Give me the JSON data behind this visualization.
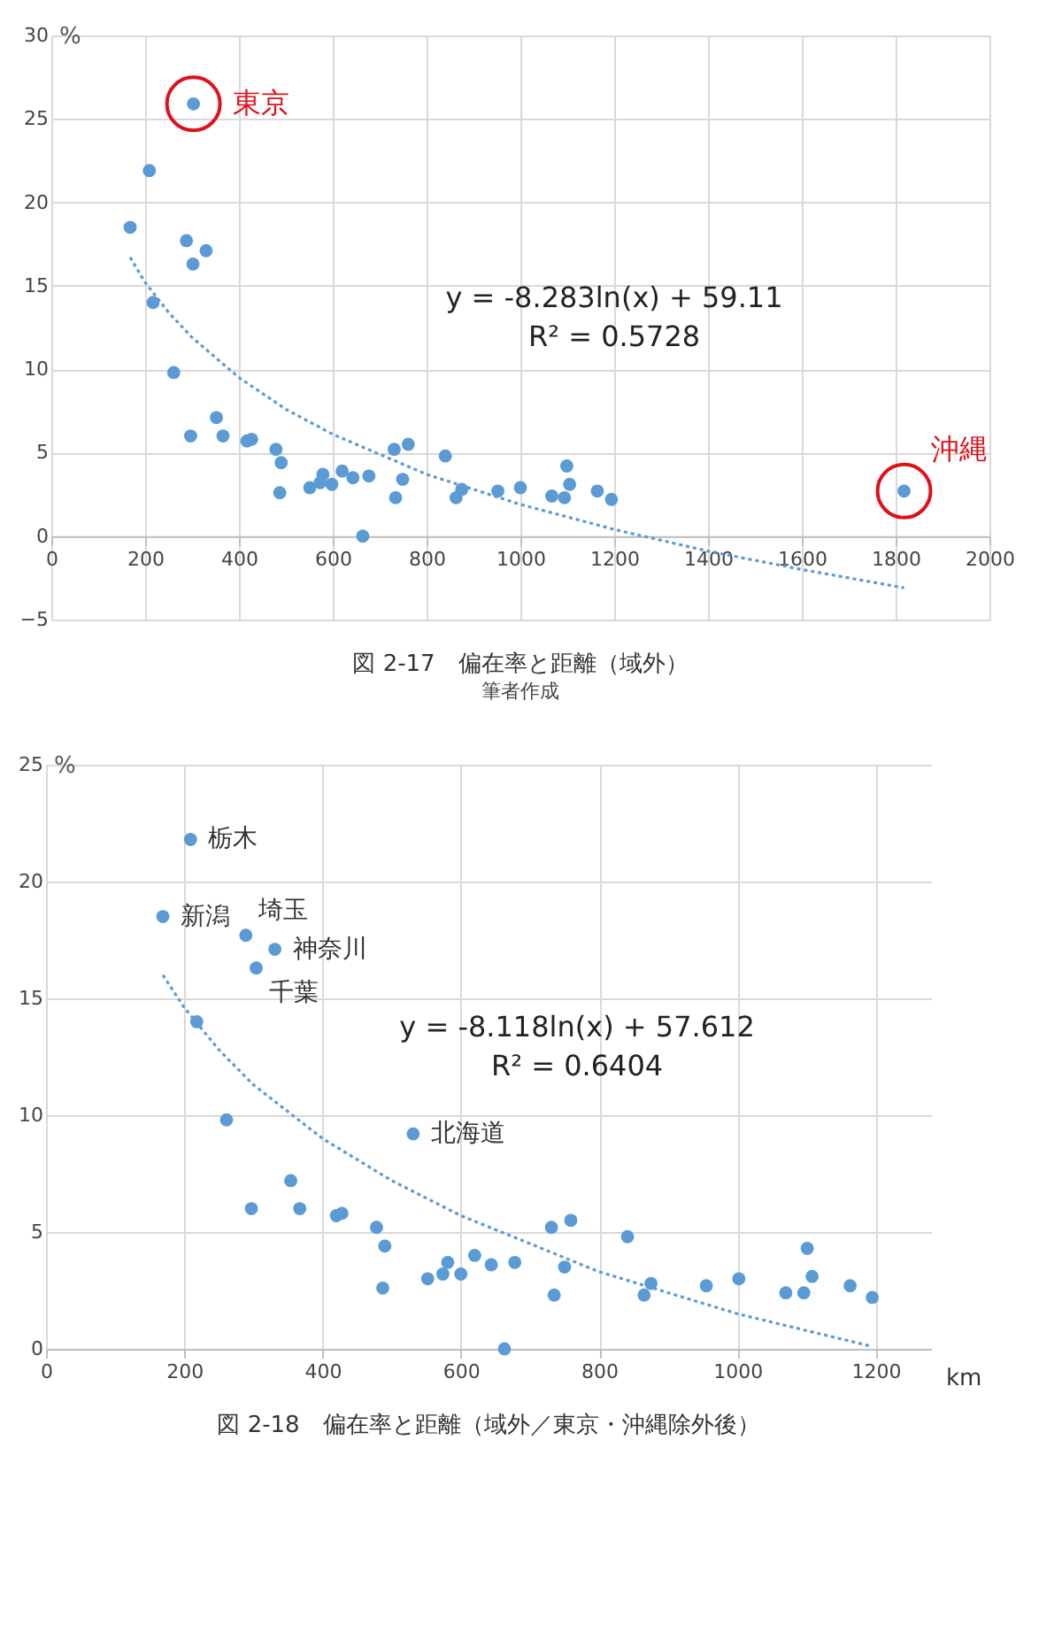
{
  "chart_data": [
    {
      "type": "scatter",
      "title": "図 2-17　偏在率と距離（域外）",
      "subtitle": "筆者作成",
      "ylabel": "%",
      "xlim": [
        0,
        2000
      ],
      "xticks": [
        0,
        200,
        400,
        600,
        800,
        1000,
        1200,
        1400,
        1600,
        1800,
        2000
      ],
      "ylim": [
        -5,
        30
      ],
      "yticks": [
        -5,
        0,
        5,
        10,
        15,
        20,
        25,
        30
      ],
      "grid": true,
      "series": [
        {
          "type": "scatter",
          "marker": "circle",
          "color": "#5b9bd5",
          "x": [
            168,
            209,
            303,
            288,
            330,
            302,
            217,
            261,
            352,
            297,
            366,
            417,
            427,
            479,
            490,
            487,
            551,
            579,
            573,
            598,
            620,
            643,
            677,
            664,
            731,
            761,
            734,
            749,
            840,
            863,
            875,
            952,
            1000,
            1067,
            1094,
            1099,
            1105,
            1164,
            1194,
            1818
          ],
          "values": [
            18.5,
            21.9,
            25.9,
            17.7,
            17.1,
            16.3,
            14.0,
            9.8,
            7.1,
            6.0,
            6.0,
            5.7,
            5.8,
            5.2,
            4.4,
            2.6,
            2.9,
            3.7,
            3.2,
            3.1,
            3.9,
            3.5,
            3.6,
            0,
            5.2,
            5.5,
            2.3,
            3.4,
            4.8,
            2.3,
            2.8,
            2.7,
            2.9,
            2.4,
            2.3,
            4.2,
            3.1,
            2.7,
            2.2,
            2.7
          ]
        },
        {
          "type": "line",
          "color": "#5b9bd5",
          "line_style": "dotted",
          "x": [
            168,
            200,
            250,
            300,
            400,
            500,
            600,
            800,
            1000,
            1200,
            1400,
            1600,
            1818
          ],
          "values": [
            16.7,
            15.2,
            13.4,
            11.9,
            9.5,
            7.6,
            6.1,
            3.7,
            1.9,
            0.4,
            -0.9,
            -2.0,
            -3.1
          ]
        }
      ],
      "annotations": [
        {
          "text": "東京",
          "x": 303,
          "y": 25.9
        },
        {
          "text": "沖縄",
          "x": 1818,
          "y": 2.7
        },
        "y = -8.283ln(x) + 59.11",
        "R² = 0.5728"
      ]
    },
    {
      "type": "scatter",
      "title": "図 2-18　偏在率と距離（域外／東京・沖縄除外後）",
      "ylabel": "%",
      "xlabel": "km",
      "xlim": [
        0,
        1280
      ],
      "xticks": [
        0,
        200,
        400,
        600,
        800,
        1000,
        1200
      ],
      "ylim": [
        0,
        25
      ],
      "yticks": [
        0,
        5,
        10,
        15,
        20,
        25
      ],
      "grid": true,
      "series": [
        {
          "type": "scatter",
          "marker": "circle",
          "color": "#5b9bd5",
          "x": [
            209,
            169,
            289,
            331,
            304,
            218,
            261,
            531,
            354,
            297,
            367,
            420,
            428,
            478,
            490,
            487,
            552,
            574,
            581,
            600,
            620,
            644,
            678,
            663,
            731,
            759,
            735,
            750,
            841,
            865,
            875,
            955,
            1002,
            1070,
            1096,
            1101,
            1108,
            1163,
            1195
          ],
          "values": [
            21.8,
            18.5,
            17.7,
            17.1,
            16.3,
            14.0,
            9.8,
            9.2,
            7.2,
            6.0,
            6.0,
            5.7,
            5.8,
            5.2,
            4.4,
            2.6,
            3.0,
            3.2,
            3.7,
            3.2,
            4.0,
            3.6,
            3.7,
            0,
            5.2,
            5.5,
            2.3,
            3.5,
            4.8,
            2.3,
            2.8,
            2.7,
            3.0,
            2.4,
            2.4,
            4.3,
            3.1,
            2.7,
            2.2
          ]
        },
        {
          "type": "line",
          "color": "#5b9bd5",
          "line_style": "dotted",
          "x": [
            169,
            200,
            250,
            300,
            400,
            500,
            600,
            800,
            1000,
            1195
          ],
          "values": [
            16.0,
            14.6,
            12.8,
            11.3,
            9.0,
            7.2,
            5.7,
            3.3,
            1.5,
            0.1
          ]
        }
      ],
      "annotations": [
        {
          "text": "栃木",
          "x": 209,
          "y": 21.8
        },
        {
          "text": "新潟",
          "x": 169,
          "y": 18.5
        },
        {
          "text": "埼玉",
          "x": 289,
          "y": 17.7
        },
        {
          "text": "神奈川",
          "x": 331,
          "y": 17.1
        },
        {
          "text": "千葉",
          "x": 304,
          "y": 16.3
        },
        {
          "text": "北海道",
          "x": 531,
          "y": 9.2
        },
        "y = -8.118ln(x) + 57.612",
        "R² = 0.6404"
      ]
    }
  ]
}
